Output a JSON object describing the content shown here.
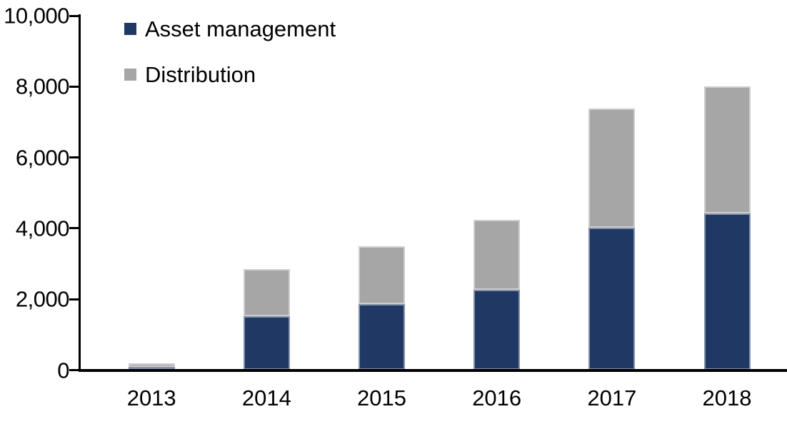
{
  "chart_data": {
    "type": "bar",
    "stacked": true,
    "title": "",
    "xlabel": "",
    "ylabel": "",
    "categories": [
      "2013",
      "2014",
      "2015",
      "2016",
      "2017",
      "2018"
    ],
    "series": [
      {
        "name": "Asset management",
        "color": "#1F3864",
        "values": [
          100,
          1520,
          1870,
          2270,
          4010,
          4420
        ]
      },
      {
        "name": "Distribution",
        "color": "#A6A6A6",
        "values": [
          100,
          1330,
          1630,
          1970,
          3380,
          3580
        ]
      }
    ],
    "totals": [
      200,
      2850,
      3500,
      4240,
      7390,
      8000
    ],
    "ylim": [
      0,
      10000
    ],
    "ytick_step": 2000,
    "ytick_labels": [
      "0",
      "2,000",
      "4,000",
      "6,000",
      "8,000",
      "10,000"
    ],
    "grid": false,
    "legend_position": "top-left-inside"
  },
  "colors": {
    "axis": "#000000",
    "text": "#000000",
    "background": "#FFFFFF",
    "asset_management": "#1F3864",
    "distribution": "#A6A6A6"
  }
}
